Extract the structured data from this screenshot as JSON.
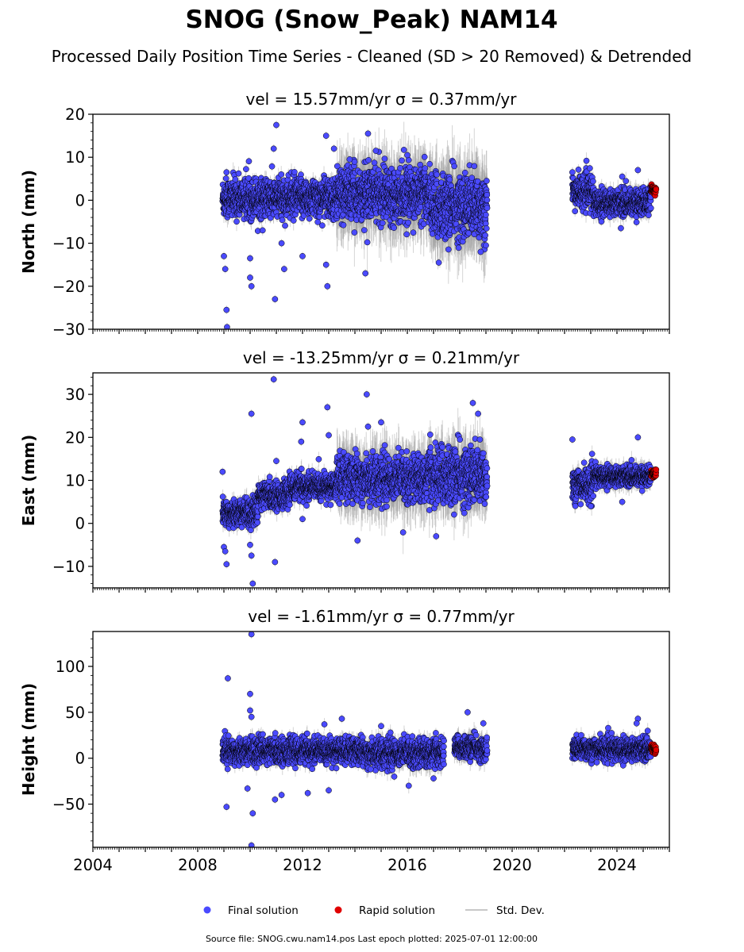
{
  "figure": {
    "title": "SNOG (Snow_Peak) NAM14",
    "subtitle": "Processed Daily Position Time Series - Cleaned (SD > 20 Removed) & Detrended",
    "source_note": "Source file: SNOG.cwu.nam14.pos  Last epoch plotted: 2025-07-01 12:00:00"
  },
  "legend": {
    "placement": "bottom-center",
    "items": [
      {
        "label": "Final solution",
        "color": "#4a4aff",
        "marker": "circle"
      },
      {
        "label": "Rapid solution",
        "color": "#e00000",
        "marker": "circle"
      },
      {
        "label": "Std. Dev.",
        "color": "#c8c8c8",
        "marker": "line"
      }
    ]
  },
  "colors": {
    "final": "#4a4aff",
    "rapid": "#e00000",
    "errorbar": "#a0a0a0",
    "edge": "#000000"
  },
  "chart_data": [
    {
      "type": "scatter",
      "panel_title": "vel = 15.57mm/yr   σ = 0.37mm/yr",
      "ylabel": "North (mm)",
      "xlim": [
        2004.0,
        2026.0
      ],
      "ylim": [
        -30,
        20
      ],
      "yticks": [
        -30,
        -20,
        -10,
        0,
        10,
        20
      ],
      "ytick_labels": [
        "−30",
        "−20",
        "−10",
        "0",
        "10",
        "20"
      ],
      "xticks": [
        2004,
        2008,
        2012,
        2016,
        2020,
        2024
      ],
      "xtick_labels": [
        "2004",
        "2008",
        "2012",
        "2016",
        "2020",
        "2024"
      ],
      "show_xtick_labels": false,
      "grid": false,
      "series": [
        {
          "name": "Final solution",
          "segments": [
            {
              "x0": 2008.95,
              "x1": 2013.3,
              "center": 0.5,
              "spread": 3.0,
              "err": 2.0
            },
            {
              "x0": 2013.3,
              "x1": 2016.9,
              "center": 1.5,
              "spread": 4.0,
              "err": 7.0
            },
            {
              "x0": 2016.9,
              "x1": 2019.05,
              "center": -1.5,
              "spread": 5.0,
              "err": 8.0
            },
            {
              "x0": 2022.3,
              "x1": 2023.1,
              "center": 2.0,
              "spread": 2.5,
              "err": 2.0
            },
            {
              "x0": 2023.1,
              "x1": 2025.3,
              "center": -0.5,
              "spread": 2.0,
              "err": 2.0
            }
          ],
          "outliers": [
            [
              2009.0,
              -13
            ],
            [
              2009.05,
              -16
            ],
            [
              2009.1,
              -25.5
            ],
            [
              2009.12,
              -29.5
            ],
            [
              2009.1,
              6.5
            ],
            [
              2010.0,
              -18
            ],
            [
              2010.05,
              -20
            ],
            [
              2010.0,
              -13.5
            ],
            [
              2010.9,
              12
            ],
            [
              2011.0,
              17.5
            ],
            [
              2010.95,
              -23
            ],
            [
              2011.3,
              -16
            ],
            [
              2011.2,
              -10
            ],
            [
              2012.0,
              -13
            ],
            [
              2012.9,
              -15
            ],
            [
              2012.95,
              -20
            ],
            [
              2013.2,
              12
            ],
            [
              2012.9,
              15
            ],
            [
              2014.4,
              -17
            ],
            [
              2014.5,
              15.5
            ],
            [
              2014.8,
              11.5
            ],
            [
              2016.0,
              10.5
            ],
            [
              2017.2,
              -14.5
            ],
            [
              2018.8,
              -12
            ],
            [
              2019.0,
              -10.5
            ],
            [
              2022.3,
              6.5
            ],
            [
              2024.15,
              -6.5
            ],
            [
              2024.8,
              7.0
            ],
            [
              2024.2,
              5.5
            ],
            [
              2013.8,
              9.5
            ]
          ]
        }
      ],
      "rapid": {
        "x0": 2025.3,
        "x1": 2025.5,
        "center": 2.5,
        "spread": 0.8
      }
    },
    {
      "type": "scatter",
      "panel_title": "vel = -13.25mm/yr   σ = 0.21mm/yr",
      "ylabel": "East (mm)",
      "xlim": [
        2004.0,
        2026.0
      ],
      "ylim": [
        -15,
        35
      ],
      "yticks": [
        -10,
        0,
        10,
        20,
        30
      ],
      "ytick_labels": [
        "−10",
        "0",
        "10",
        "20",
        "30"
      ],
      "xticks": [
        2004,
        2008,
        2012,
        2016,
        2020,
        2024
      ],
      "xtick_labels": [
        "2004",
        "2008",
        "2012",
        "2016",
        "2020",
        "2024"
      ],
      "show_xtick_labels": false,
      "grid": false,
      "series": [
        {
          "name": "Final solution",
          "segments": [
            {
              "x0": 2008.95,
              "x1": 2010.3,
              "center": 2.5,
              "spread": 2.0,
              "err": 2.0
            },
            {
              "x0": 2010.3,
              "x1": 2011.5,
              "center": 6.5,
              "spread": 2.0,
              "err": 2.0
            },
            {
              "x0": 2011.5,
              "x1": 2013.3,
              "center": 8.5,
              "spread": 2.0,
              "err": 2.0
            },
            {
              "x0": 2013.3,
              "x1": 2016.8,
              "center": 10.5,
              "spread": 3.5,
              "err": 6.0
            },
            {
              "x0": 2016.8,
              "x1": 2019.05,
              "center": 11.0,
              "spread": 4.5,
              "err": 6.0
            },
            {
              "x0": 2022.3,
              "x1": 2023.1,
              "center": 9.0,
              "spread": 2.5,
              "err": 2.0
            },
            {
              "x0": 2023.1,
              "x1": 2025.3,
              "center": 11.0,
              "spread": 1.5,
              "err": 2.0
            }
          ],
          "outliers": [
            [
              2008.95,
              12
            ],
            [
              2009.0,
              -5.5
            ],
            [
              2009.1,
              -9.5
            ],
            [
              2009.05,
              -6.5
            ],
            [
              2010.0,
              -5
            ],
            [
              2010.05,
              -7.5
            ],
            [
              2010.1,
              -14
            ],
            [
              2010.05,
              25.5
            ],
            [
              2010.9,
              33.5
            ],
            [
              2010.95,
              -9
            ],
            [
              2011.0,
              14.5
            ],
            [
              2012.0,
              23.5
            ],
            [
              2011.95,
              19
            ],
            [
              2012.0,
              1
            ],
            [
              2012.95,
              27
            ],
            [
              2013.0,
              20.5
            ],
            [
              2014.1,
              -4
            ],
            [
              2014.45,
              30
            ],
            [
              2014.5,
              22.5
            ],
            [
              2015.0,
              23.5
            ],
            [
              2018.5,
              28
            ],
            [
              2018.7,
              25.5
            ],
            [
              2017.1,
              -3
            ],
            [
              2022.3,
              19.5
            ],
            [
              2023.0,
              4
            ],
            [
              2024.2,
              5
            ],
            [
              2024.8,
              20
            ]
          ]
        }
      ],
      "rapid": {
        "x0": 2025.3,
        "x1": 2025.5,
        "center": 11.5,
        "spread": 1.0
      }
    },
    {
      "type": "scatter",
      "panel_title": "vel = -1.61mm/yr   σ = 0.77mm/yr",
      "ylabel": "Height (mm)",
      "xlim": [
        2004.0,
        2026.0
      ],
      "ylim": [
        -97,
        138
      ],
      "yticks": [
        -50,
        0,
        50,
        100
      ],
      "ytick_labels": [
        "−50",
        "0",
        "50",
        "100"
      ],
      "xticks": [
        2004,
        2008,
        2012,
        2016,
        2020,
        2024
      ],
      "xtick_labels": [
        "2004",
        "2008",
        "2012",
        "2016",
        "2020",
        "2024"
      ],
      "show_xtick_labels": true,
      "grid": false,
      "series": [
        {
          "name": "Final solution",
          "segments": [
            {
              "x0": 2008.95,
              "x1": 2014.3,
              "center": 8.0,
              "spread": 9.0,
              "err": 8.0
            },
            {
              "x0": 2014.3,
              "x1": 2017.4,
              "center": 6.0,
              "spread": 10.0,
              "err": 10.0
            },
            {
              "x0": 2017.8,
              "x1": 2018.6,
              "center": 12.0,
              "spread": 8.0,
              "err": 10.0
            },
            {
              "x0": 2018.6,
              "x1": 2019.05,
              "center": 10.0,
              "spread": 8.0,
              "err": 10.0
            },
            {
              "x0": 2022.3,
              "x1": 2025.3,
              "center": 10.0,
              "spread": 8.0,
              "err": 8.0
            }
          ],
          "outliers": [
            [
              2009.15,
              87
            ],
            [
              2009.1,
              -53
            ],
            [
              2010.05,
              135
            ],
            [
              2010.0,
              70
            ],
            [
              2010.0,
              52
            ],
            [
              2010.05,
              45
            ],
            [
              2010.1,
              -60
            ],
            [
              2010.05,
              -95
            ],
            [
              2009.9,
              -33
            ],
            [
              2010.95,
              -45
            ],
            [
              2011.2,
              -40
            ],
            [
              2012.2,
              -38
            ],
            [
              2013.0,
              -35
            ],
            [
              2013.5,
              43
            ],
            [
              2015.0,
              35
            ],
            [
              2018.3,
              50
            ],
            [
              2018.9,
              38
            ],
            [
              2017.0,
              -22
            ],
            [
              2024.8,
              43
            ],
            [
              2024.75,
              38
            ],
            [
              2015.5,
              -20
            ],
            [
              2014.6,
              -12
            ]
          ]
        }
      ],
      "rapid": {
        "x0": 2025.3,
        "x1": 2025.5,
        "center": 10.0,
        "spread": 4.0
      }
    }
  ]
}
